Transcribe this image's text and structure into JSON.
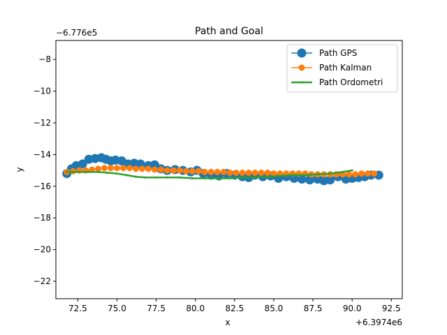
{
  "chart_data": {
    "type": "line",
    "title": "Path and Goal",
    "xlabel": "x",
    "ylabel": "y",
    "x_offset_label": "+6.3974e6",
    "y_offset_label": "−6.776e5",
    "x_offset": 6397400,
    "y_offset": -677600,
    "xlim": [
      71.1,
      93.2
    ],
    "ylim": [
      -23.1,
      -6.8
    ],
    "xticks": [
      72.5,
      75.0,
      77.5,
      80.0,
      82.5,
      85.0,
      87.5,
      90.0,
      92.5
    ],
    "xtick_labels": [
      "72.5",
      "75.0",
      "77.5",
      "80.0",
      "82.5",
      "85.0",
      "87.5",
      "90.0",
      "92.5"
    ],
    "yticks": [
      -8,
      -10,
      -12,
      -14,
      -16,
      -18,
      -20,
      -22
    ],
    "ytick_labels": [
      "−8",
      "−10",
      "−12",
      "−14",
      "−16",
      "−18",
      "−20",
      "−22"
    ],
    "grid": false,
    "legend_position": "upper right",
    "series": [
      {
        "name": "Path GPS",
        "color": "#1f77b4",
        "marker": "circle-large",
        "x": [
          71.8,
          72.1,
          72.4,
          72.8,
          73.2,
          73.6,
          74.0,
          74.3,
          74.6,
          74.9,
          75.3,
          75.7,
          76.1,
          76.5,
          77.0,
          77.4,
          77.8,
          78.2,
          78.7,
          79.2,
          79.7,
          80.1,
          80.5,
          81.0,
          81.5,
          82.0,
          82.5,
          83.0,
          83.4,
          83.8,
          84.3,
          84.8,
          85.3,
          85.8,
          86.3,
          86.8,
          87.3,
          87.8,
          88.2,
          88.6,
          89.1,
          89.6,
          90.0,
          90.4,
          90.8,
          91.2,
          91.7
        ],
        "y": [
          -15.2,
          -14.9,
          -14.7,
          -14.6,
          -14.3,
          -14.25,
          -14.2,
          -14.3,
          -14.4,
          -14.35,
          -14.4,
          -14.6,
          -14.55,
          -14.6,
          -14.7,
          -14.65,
          -14.9,
          -15.0,
          -14.95,
          -15.0,
          -15.1,
          -15.0,
          -15.2,
          -15.3,
          -15.35,
          -15.2,
          -15.3,
          -15.4,
          -15.45,
          -15.3,
          -15.4,
          -15.35,
          -15.5,
          -15.4,
          -15.5,
          -15.55,
          -15.6,
          -15.55,
          -15.65,
          -15.6,
          -15.4,
          -15.55,
          -15.5,
          -15.45,
          -15.4,
          -15.3,
          -15.3
        ]
      },
      {
        "name": "Path Kalman",
        "color": "#ff7f0e",
        "marker": "circle-medium",
        "x": [
          71.8,
          72.2,
          72.6,
          73.0,
          73.4,
          73.8,
          74.2,
          74.6,
          75.0,
          75.4,
          75.8,
          76.2,
          76.6,
          77.0,
          77.4,
          77.8,
          78.2,
          78.6,
          79.0,
          79.4,
          79.8,
          80.2,
          80.6,
          81.0,
          81.4,
          81.8,
          82.2,
          82.6,
          83.0,
          83.4,
          83.8,
          84.2,
          84.6,
          85.0,
          85.4,
          85.8,
          86.2,
          86.6,
          87.0,
          87.4,
          87.8,
          88.2,
          88.6,
          89.0,
          89.4,
          89.8,
          90.2,
          90.6,
          91.0,
          91.4
        ],
        "y": [
          -15.1,
          -15.05,
          -15.0,
          -15.0,
          -14.95,
          -14.9,
          -14.85,
          -14.85,
          -14.85,
          -14.85,
          -14.85,
          -14.9,
          -14.9,
          -14.9,
          -14.95,
          -14.95,
          -15.0,
          -15.0,
          -15.0,
          -15.05,
          -15.05,
          -15.05,
          -15.1,
          -15.1,
          -15.1,
          -15.1,
          -15.15,
          -15.15,
          -15.15,
          -15.15,
          -15.15,
          -15.15,
          -15.15,
          -15.2,
          -15.2,
          -15.2,
          -15.2,
          -15.2,
          -15.2,
          -15.25,
          -15.25,
          -15.25,
          -15.25,
          -15.25,
          -15.25,
          -15.25,
          -15.25,
          -15.2,
          -15.2,
          -15.2
        ]
      },
      {
        "name": "Path Ordometri",
        "color": "#2ca02c",
        "marker": "dot-small",
        "x": [
          71.8,
          72.5,
          73.2,
          73.8,
          74.4,
          75.0,
          75.6,
          76.2,
          76.8,
          77.5,
          78.2,
          79.0,
          79.8,
          80.6,
          81.4,
          82.2,
          83.0,
          83.8,
          84.6,
          85.4,
          86.2,
          87.0,
          87.8,
          88.6,
          89.4,
          90.0
        ],
        "y": [
          -15.1,
          -15.1,
          -15.1,
          -15.1,
          -15.15,
          -15.2,
          -15.3,
          -15.4,
          -15.45,
          -15.45,
          -15.45,
          -15.45,
          -15.5,
          -15.5,
          -15.5,
          -15.5,
          -15.45,
          -15.45,
          -15.4,
          -15.35,
          -15.3,
          -15.3,
          -15.25,
          -15.2,
          -15.1,
          -15.0
        ]
      }
    ]
  }
}
